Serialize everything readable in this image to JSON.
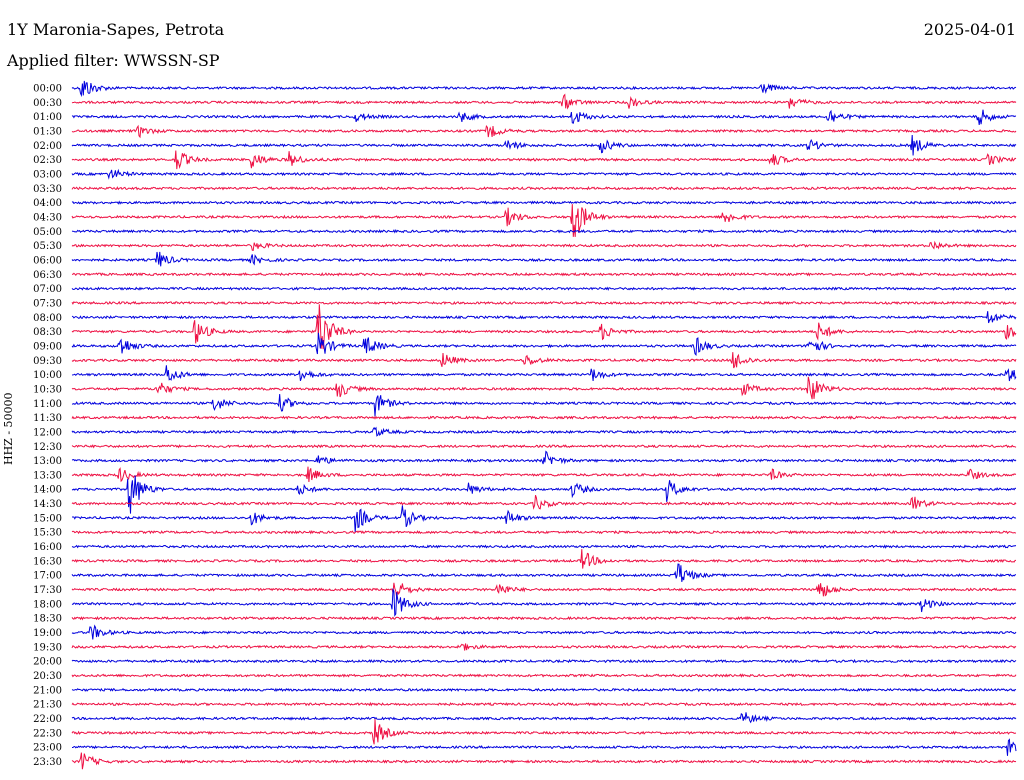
{
  "header": {
    "station": "1Y Maronia-Sapes, Petrota",
    "date": "2025-04-01",
    "filter_label": "Applied filter: WWSSN-SP"
  },
  "y_axis_label": "HHZ - 50000",
  "colors": {
    "odd_trace": "#0000dd",
    "even_trace": "#ee1144",
    "background": "#ffffff"
  },
  "chart_data": {
    "type": "line",
    "title": "1Y Maronia-Sapes, Petrota",
    "ylabel": "HHZ - 50000",
    "grid": false,
    "tick_labels": [
      "00:00",
      "00:30",
      "01:00",
      "01:30",
      "02:00",
      "02:30",
      "03:00",
      "03:30",
      "04:00",
      "04:30",
      "05:00",
      "05:30",
      "06:00",
      "06:30",
      "07:00",
      "07:30",
      "08:00",
      "08:30",
      "09:00",
      "09:30",
      "10:00",
      "10:30",
      "11:00",
      "11:30",
      "12:00",
      "12:30",
      "13:00",
      "13:30",
      "14:00",
      "14:30",
      "15:00",
      "15:30",
      "16:00",
      "16:30",
      "17:00",
      "17:30",
      "18:00",
      "18:30",
      "19:00",
      "19:30",
      "20:00",
      "20:30",
      "21:00",
      "21:30",
      "22:00",
      "22:30",
      "23:00",
      "23:30"
    ],
    "events": [
      {
        "row": 0,
        "t": 0.01,
        "a": 14
      },
      {
        "row": 0,
        "t": 0.73,
        "a": 6
      },
      {
        "row": 1,
        "t": 0.52,
        "a": 8
      },
      {
        "row": 1,
        "t": 0.59,
        "a": 6
      },
      {
        "row": 1,
        "t": 0.76,
        "a": 7
      },
      {
        "row": 2,
        "t": 0.3,
        "a": 5
      },
      {
        "row": 2,
        "t": 0.41,
        "a": 6
      },
      {
        "row": 2,
        "t": 0.53,
        "a": 9
      },
      {
        "row": 2,
        "t": 0.8,
        "a": 10
      },
      {
        "row": 2,
        "t": 0.96,
        "a": 10
      },
      {
        "row": 3,
        "t": 0.07,
        "a": 6
      },
      {
        "row": 3,
        "t": 0.44,
        "a": 8
      },
      {
        "row": 4,
        "t": 0.46,
        "a": 6
      },
      {
        "row": 4,
        "t": 0.56,
        "a": 8
      },
      {
        "row": 4,
        "t": 0.78,
        "a": 7
      },
      {
        "row": 4,
        "t": 0.89,
        "a": 10
      },
      {
        "row": 5,
        "t": 0.11,
        "a": 12
      },
      {
        "row": 5,
        "t": 0.19,
        "a": 9
      },
      {
        "row": 5,
        "t": 0.23,
        "a": 8
      },
      {
        "row": 5,
        "t": 0.74,
        "a": 8
      },
      {
        "row": 5,
        "t": 0.97,
        "a": 6
      },
      {
        "row": 6,
        "t": 0.04,
        "a": 6
      },
      {
        "row": 9,
        "t": 0.46,
        "a": 10
      },
      {
        "row": 9,
        "t": 0.53,
        "a": 30
      },
      {
        "row": 9,
        "t": 0.69,
        "a": 9
      },
      {
        "row": 11,
        "t": 0.19,
        "a": 5
      },
      {
        "row": 11,
        "t": 0.91,
        "a": 5
      },
      {
        "row": 12,
        "t": 0.09,
        "a": 10
      },
      {
        "row": 12,
        "t": 0.19,
        "a": 5
      },
      {
        "row": 16,
        "t": 0.97,
        "a": 8
      },
      {
        "row": 17,
        "t": 0.13,
        "a": 14
      },
      {
        "row": 17,
        "t": 0.26,
        "a": 38
      },
      {
        "row": 17,
        "t": 0.56,
        "a": 9
      },
      {
        "row": 17,
        "t": 0.79,
        "a": 10
      },
      {
        "row": 17,
        "t": 0.99,
        "a": 12
      },
      {
        "row": 18,
        "t": 0.05,
        "a": 12
      },
      {
        "row": 18,
        "t": 0.26,
        "a": 16
      },
      {
        "row": 18,
        "t": 0.31,
        "a": 12
      },
      {
        "row": 18,
        "t": 0.66,
        "a": 10
      },
      {
        "row": 18,
        "t": 0.78,
        "a": 12
      },
      {
        "row": 19,
        "t": 0.39,
        "a": 10
      },
      {
        "row": 19,
        "t": 0.48,
        "a": 7
      },
      {
        "row": 19,
        "t": 0.7,
        "a": 11
      },
      {
        "row": 20,
        "t": 0.1,
        "a": 10
      },
      {
        "row": 20,
        "t": 0.24,
        "a": 9
      },
      {
        "row": 20,
        "t": 0.55,
        "a": 7
      },
      {
        "row": 20,
        "t": 0.99,
        "a": 8
      },
      {
        "row": 21,
        "t": 0.09,
        "a": 9
      },
      {
        "row": 21,
        "t": 0.28,
        "a": 11
      },
      {
        "row": 21,
        "t": 0.71,
        "a": 7
      },
      {
        "row": 21,
        "t": 0.78,
        "a": 18
      },
      {
        "row": 22,
        "t": 0.15,
        "a": 9
      },
      {
        "row": 22,
        "t": 0.22,
        "a": 9
      },
      {
        "row": 22,
        "t": 0.32,
        "a": 14
      },
      {
        "row": 24,
        "t": 0.32,
        "a": 5
      },
      {
        "row": 26,
        "t": 0.26,
        "a": 6
      },
      {
        "row": 26,
        "t": 0.5,
        "a": 10
      },
      {
        "row": 27,
        "t": 0.05,
        "a": 8
      },
      {
        "row": 27,
        "t": 0.25,
        "a": 8
      },
      {
        "row": 27,
        "t": 0.74,
        "a": 6
      },
      {
        "row": 27,
        "t": 0.95,
        "a": 6
      },
      {
        "row": 28,
        "t": 0.06,
        "a": 30
      },
      {
        "row": 28,
        "t": 0.24,
        "a": 6
      },
      {
        "row": 28,
        "t": 0.42,
        "a": 6
      },
      {
        "row": 28,
        "t": 0.53,
        "a": 8
      },
      {
        "row": 28,
        "t": 0.63,
        "a": 12
      },
      {
        "row": 29,
        "t": 0.49,
        "a": 8
      },
      {
        "row": 29,
        "t": 0.89,
        "a": 8
      },
      {
        "row": 30,
        "t": 0.19,
        "a": 7
      },
      {
        "row": 30,
        "t": 0.3,
        "a": 14
      },
      {
        "row": 30,
        "t": 0.35,
        "a": 12
      },
      {
        "row": 30,
        "t": 0.46,
        "a": 8
      },
      {
        "row": 33,
        "t": 0.54,
        "a": 12
      },
      {
        "row": 34,
        "t": 0.64,
        "a": 16
      },
      {
        "row": 35,
        "t": 0.34,
        "a": 14
      },
      {
        "row": 35,
        "t": 0.45,
        "a": 8
      },
      {
        "row": 35,
        "t": 0.79,
        "a": 12
      },
      {
        "row": 36,
        "t": 0.34,
        "a": 18
      },
      {
        "row": 36,
        "t": 0.9,
        "a": 7
      },
      {
        "row": 38,
        "t": 0.02,
        "a": 9
      },
      {
        "row": 39,
        "t": 0.41,
        "a": 5
      },
      {
        "row": 44,
        "t": 0.71,
        "a": 8
      },
      {
        "row": 45,
        "t": 0.32,
        "a": 14
      },
      {
        "row": 46,
        "t": 0.99,
        "a": 9
      },
      {
        "row": 47,
        "t": 0.01,
        "a": 10
      }
    ]
  }
}
